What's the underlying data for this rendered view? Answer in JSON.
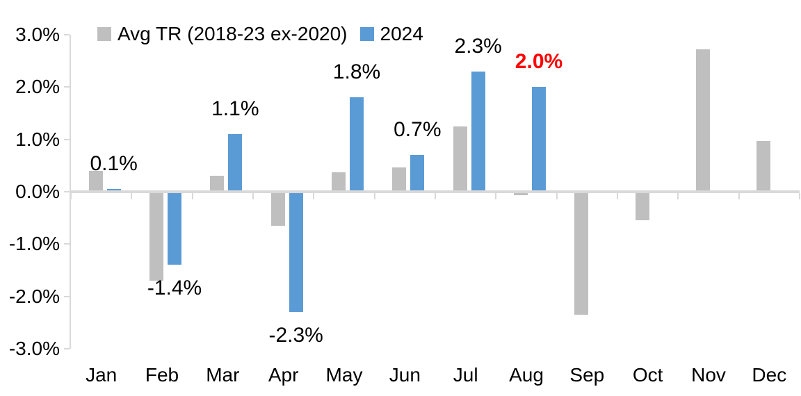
{
  "chart_data": {
    "type": "bar",
    "title": "",
    "categories": [
      "Jan",
      "Feb",
      "Mar",
      "Apr",
      "May",
      "Jun",
      "Jul",
      "Aug",
      "Sep",
      "Oct",
      "Nov",
      "Dec"
    ],
    "series": [
      {
        "name": "Avg TR (2018-23 ex-2020)",
        "color": "#bfbfbf",
        "values": [
          0.4,
          -1.7,
          0.3,
          -0.65,
          0.37,
          0.47,
          1.25,
          -0.07,
          -2.35,
          -0.55,
          2.72,
          0.97
        ]
      },
      {
        "name": "2024",
        "color": "#5b9bd5",
        "values": [
          0.05,
          -1.4,
          1.1,
          -2.3,
          1.8,
          0.7,
          2.3,
          2.0,
          null,
          null,
          null,
          null
        ]
      }
    ],
    "data_labels": [
      {
        "text": "0.1%",
        "color": "#000000",
        "bold": false
      },
      {
        "text": "-1.4%",
        "color": "#000000",
        "bold": false
      },
      {
        "text": "1.1%",
        "color": "#000000",
        "bold": false
      },
      {
        "text": "-2.3%",
        "color": "#000000",
        "bold": false
      },
      {
        "text": "1.8%",
        "color": "#000000",
        "bold": false
      },
      {
        "text": "0.7%",
        "color": "#000000",
        "bold": false
      },
      {
        "text": "2.3%",
        "color": "#000000",
        "bold": false
      },
      {
        "text": "2.0%",
        "color": "#ff0000",
        "bold": true
      },
      null,
      null,
      null,
      null
    ],
    "y_axis": {
      "min": -3,
      "max": 3,
      "step": 1,
      "tick_labels": [
        "3.0%",
        "2.0%",
        "1.0%",
        "0.0%",
        "-1.0%",
        "-2.0%",
        "-3.0%"
      ]
    },
    "legend_position": "top",
    "grid": false,
    "axis_color": "#d9d9d9",
    "background_color": "#ffffff",
    "highlight_color": "#ff0000"
  }
}
